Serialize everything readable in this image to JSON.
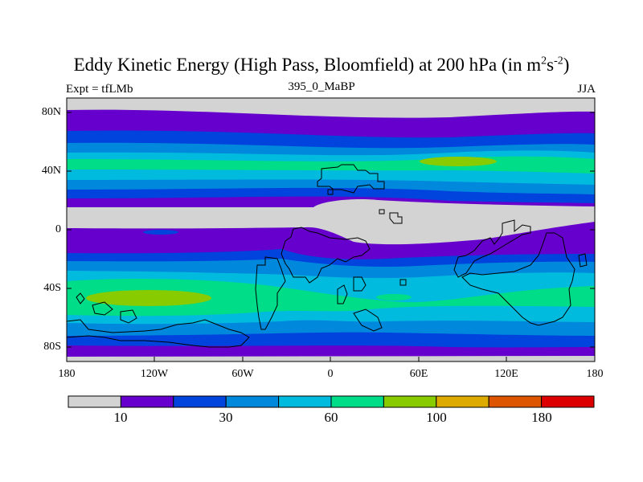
{
  "title": {
    "main": "Eddy Kinetic Energy (High Pass, Bloomfield) at 200 hPa (in m",
    "sup1": "2",
    "mid": "s",
    "sup2": "-2",
    "close": ")"
  },
  "labels": {
    "experiment": "Expt = tfLMb",
    "run": "395_0_MaBP",
    "season": "JJA"
  },
  "axes": {
    "y_ticks": [
      "80N",
      "40N",
      "0",
      "40S",
      "80S"
    ],
    "x_ticks": [
      "180",
      "120W",
      "60W",
      "0",
      "60E",
      "120E",
      "180"
    ]
  },
  "colorbar": {
    "colors": [
      "#d3d3d3",
      "#6600cc",
      "#0044dd",
      "#0088dd",
      "#00bbdd",
      "#00dd88",
      "#88cc00",
      "#ddaa00",
      "#dd5500",
      "#dd0000"
    ],
    "tick_labels": [
      "10",
      "30",
      "60",
      "100",
      "180"
    ]
  },
  "colors": {
    "land_outline": "#000000",
    "background": "#ffffff"
  }
}
